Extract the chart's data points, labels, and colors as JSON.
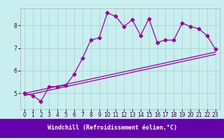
{
  "xlabel": "Windchill (Refroidissement éolien,°C)",
  "background_color": "#c8eef0",
  "line_color": "#990099",
  "grid_color": "#b0c8cc",
  "xlabel_bg": "#6600aa",
  "xlabel_fg": "#ffffff",
  "x_ticks": [
    0,
    1,
    2,
    3,
    4,
    5,
    6,
    7,
    8,
    9,
    10,
    11,
    12,
    13,
    14,
    15,
    16,
    17,
    18,
    19,
    20,
    21,
    22,
    23
  ],
  "y_ticks": [
    5,
    6,
    7,
    8
  ],
  "xlim": [
    -0.5,
    23.5
  ],
  "ylim": [
    4.3,
    8.75
  ],
  "line1_x": [
    0,
    1,
    2,
    3,
    4,
    5,
    6,
    7,
    8,
    9,
    10,
    11,
    12,
    13,
    14,
    15,
    16,
    17,
    18,
    19,
    20,
    21,
    22,
    23
  ],
  "line1_y": [
    5.0,
    4.9,
    4.65,
    5.3,
    5.3,
    5.35,
    5.85,
    6.55,
    7.35,
    7.45,
    8.55,
    8.4,
    7.95,
    8.25,
    7.55,
    8.3,
    7.25,
    7.35,
    7.35,
    8.1,
    7.95,
    7.85,
    7.55,
    6.95
  ],
  "line2_x": [
    0,
    23
  ],
  "line2_y": [
    4.9,
    6.72
  ],
  "line3_x": [
    0,
    23
  ],
  "line3_y": [
    5.0,
    6.82
  ],
  "marker": "D",
  "marker_size": 2.5,
  "line_width": 0.9,
  "tick_fontsize": 5.5,
  "label_fontsize": 6.0
}
